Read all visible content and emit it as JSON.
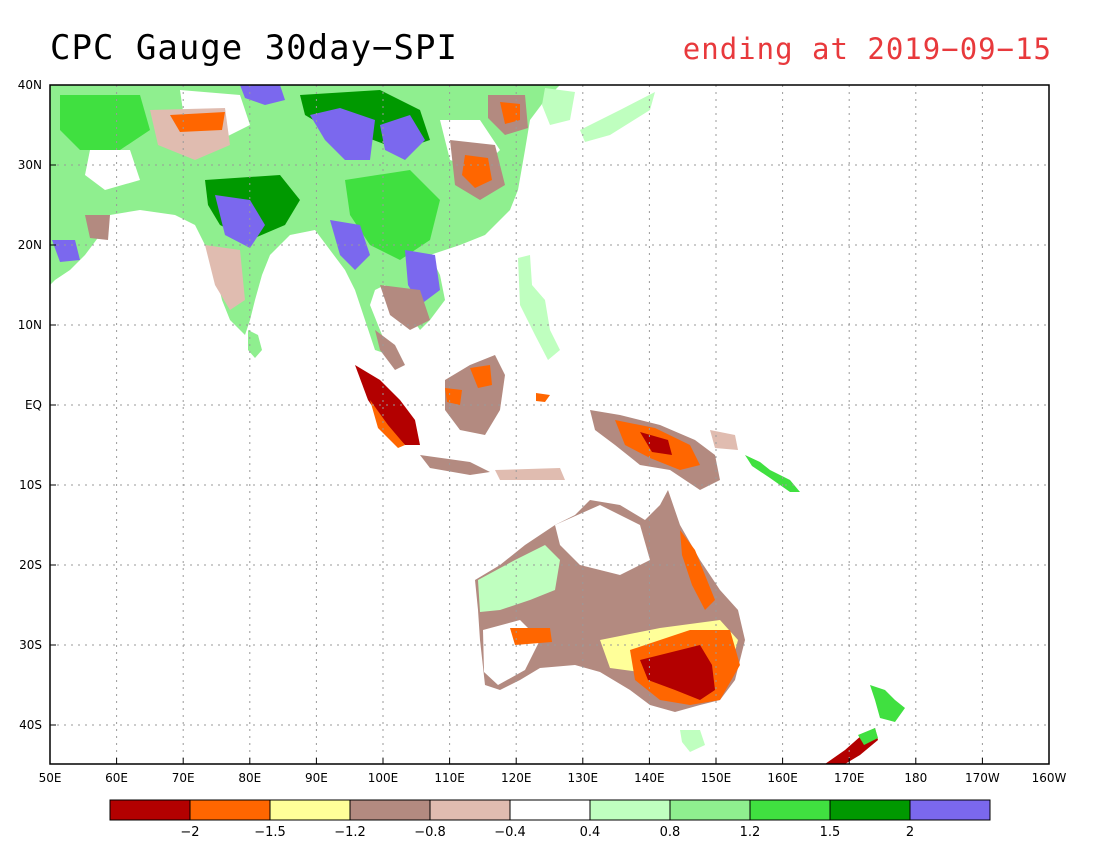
{
  "title": "CPC Gauge 30day−SPI",
  "subtitle": "ending at 2019−09−15",
  "colors": {
    "ocean": "#ffffff",
    "frame": "#000000",
    "grid": "#9a9a9a",
    "subtitle": "#e8393c"
  },
  "axes": {
    "x_ticks": [
      "50E",
      "60E",
      "70E",
      "80E",
      "90E",
      "100E",
      "110E",
      "120E",
      "130E",
      "140E",
      "150E",
      "160E",
      "170E",
      "180",
      "170W",
      "160W"
    ],
    "y_ticks": [
      "40N",
      "30N",
      "20N",
      "10N",
      "EQ",
      "10S",
      "20S",
      "30S",
      "40S"
    ]
  },
  "legend": {
    "colors": [
      "#b30000",
      "#ff6600",
      "#ffff99",
      "#b38a80",
      "#e0bcb0",
      "#ffffff",
      "#bfffbf",
      "#8fef8f",
      "#40e040",
      "#009900",
      "#7b68ee"
    ],
    "labels": [
      "−2",
      "−1.5",
      "−1.2",
      "−0.8",
      "−0.4",
      "0.4",
      "0.8",
      "1.2",
      "1.5",
      "2"
    ]
  }
}
